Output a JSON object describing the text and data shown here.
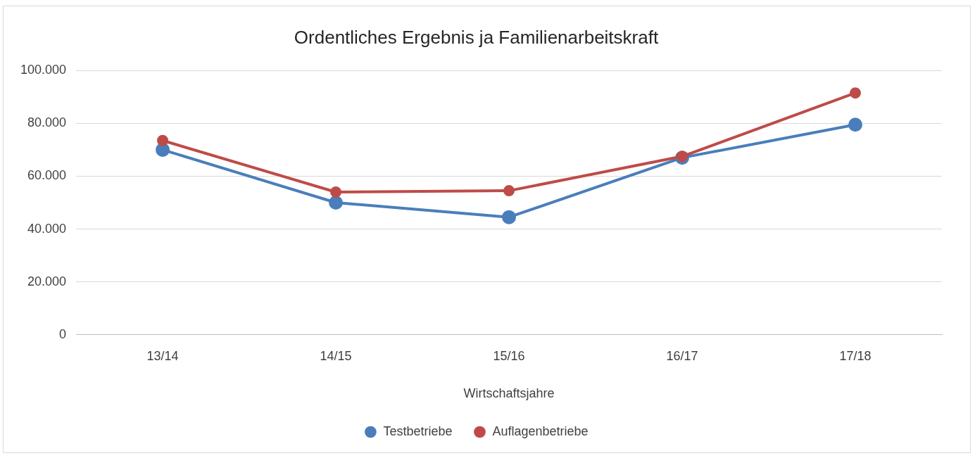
{
  "chart_data": {
    "type": "line",
    "title": "Ordentliches Ergebnis ja Familienarbeitskraft",
    "xlabel": "Wirtschaftsjahre",
    "categories": [
      "13/14",
      "14/15",
      "15/16",
      "16/17",
      "17/18"
    ],
    "series": [
      {
        "name": "Testbetriebe",
        "color": "#4a7ebb",
        "values": [
          70000,
          50000,
          44500,
          67000,
          79500
        ]
      },
      {
        "name": "Auflagenbetriebe",
        "color": "#be4b48",
        "values": [
          73500,
          54000,
          54500,
          67500,
          91500
        ]
      }
    ],
    "ylim": [
      0,
      100000
    ],
    "yticks": [
      {
        "value": 0,
        "label": "0"
      },
      {
        "value": 20000,
        "label": "20.000"
      },
      {
        "value": 40000,
        "label": "40.000"
      },
      {
        "value": 60000,
        "label": "60.000"
      },
      {
        "value": 80000,
        "label": "80.000"
      },
      {
        "value": 100000,
        "label": "100.000"
      }
    ],
    "grid": "y",
    "legend": "bottom",
    "marker": "circle",
    "line_style": "solid"
  }
}
